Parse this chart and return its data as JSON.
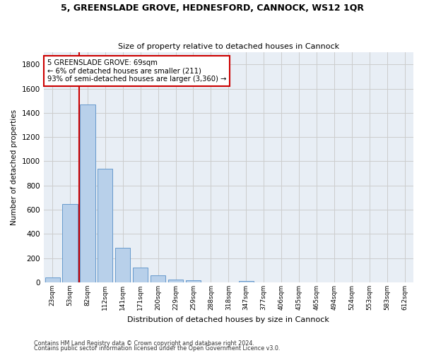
{
  "title": "5, GREENSLADE GROVE, HEDNESFORD, CANNOCK, WS12 1QR",
  "subtitle": "Size of property relative to detached houses in Cannock",
  "xlabel": "Distribution of detached houses by size in Cannock",
  "ylabel": "Number of detached properties",
  "bar_labels": [
    "23sqm",
    "53sqm",
    "82sqm",
    "112sqm",
    "141sqm",
    "171sqm",
    "200sqm",
    "229sqm",
    "259sqm",
    "288sqm",
    "318sqm",
    "347sqm",
    "377sqm",
    "406sqm",
    "435sqm",
    "465sqm",
    "494sqm",
    "524sqm",
    "553sqm",
    "583sqm",
    "612sqm"
  ],
  "bar_values": [
    40,
    645,
    1470,
    940,
    285,
    125,
    60,
    22,
    15,
    0,
    0,
    14,
    0,
    0,
    0,
    0,
    0,
    0,
    0,
    0,
    0
  ],
  "bar_color": "#b8d0ea",
  "bar_edge_color": "#6699cc",
  "vline_color": "#cc0000",
  "annotation_text": "5 GREENSLADE GROVE: 69sqm\n← 6% of detached houses are smaller (211)\n93% of semi-detached houses are larger (3,360) →",
  "annotation_box_color": "#ffffff",
  "annotation_box_edge": "#cc0000",
  "ylim": [
    0,
    1900
  ],
  "yticks": [
    0,
    200,
    400,
    600,
    800,
    1000,
    1200,
    1400,
    1600,
    1800
  ],
  "grid_color": "#cccccc",
  "background_color": "#e8eef5",
  "footnote1": "Contains HM Land Registry data © Crown copyright and database right 2024.",
  "footnote2": "Contains public sector information licensed under the Open Government Licence v3.0."
}
